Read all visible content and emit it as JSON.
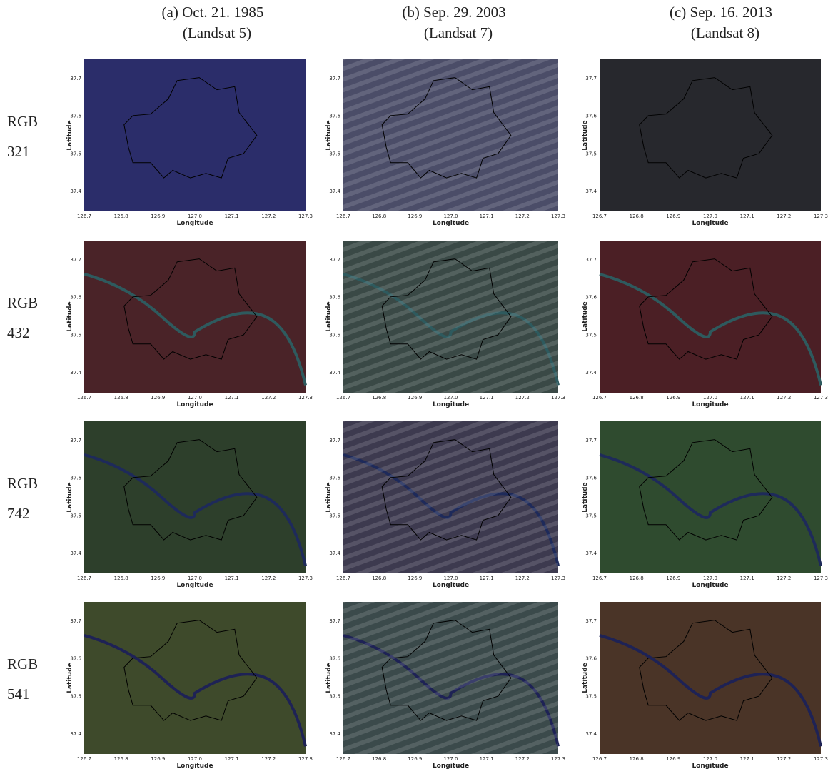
{
  "columns": [
    {
      "date": "(a)  Oct.  21.  1985",
      "sensor": "(Landsat  5)"
    },
    {
      "date": "(b)  Sep.  29.  2003",
      "sensor": "(Landsat  7)"
    },
    {
      "date": "(c)  Sep.  16.  2013",
      "sensor": "(Landsat  8)"
    }
  ],
  "rows": [
    {
      "label": "RGB",
      "bands": "321"
    },
    {
      "label": "RGB",
      "bands": "432"
    },
    {
      "label": "RGB",
      "bands": "742"
    },
    {
      "label": "RGB",
      "bands": "541"
    }
  ],
  "axes": {
    "xlabel": "Longitude",
    "ylabel": "Latitude",
    "xticks": [
      "126.7",
      "126.8",
      "126.9",
      "127.0",
      "127.1",
      "127.2",
      "127.3"
    ],
    "yticks": [
      "37.4",
      "37.5",
      "37.6",
      "37.7"
    ]
  }
}
